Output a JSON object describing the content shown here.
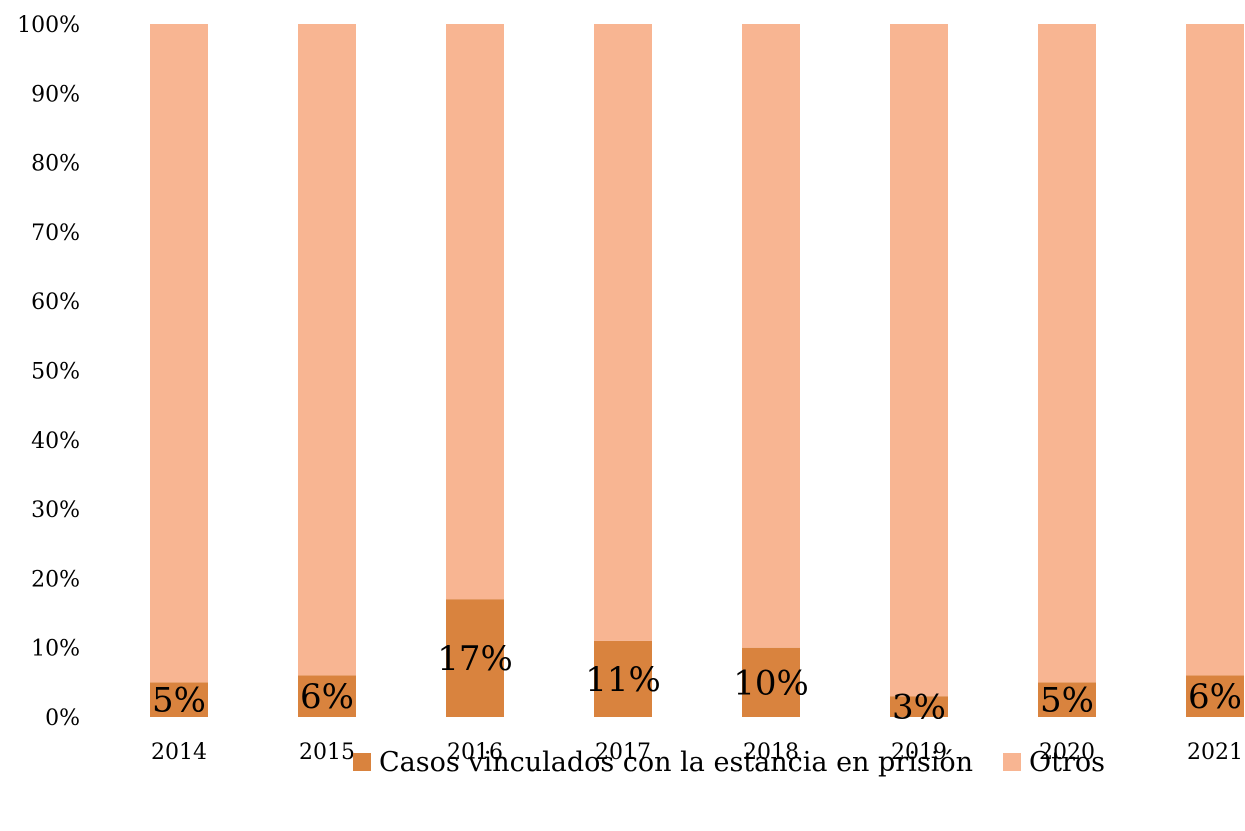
{
  "chart_data": {
    "type": "bar",
    "stacked": true,
    "percent_stacked": true,
    "categories": [
      "2014",
      "2015",
      "2016",
      "2017",
      "2018",
      "2019",
      "2020",
      "2021"
    ],
    "series": [
      {
        "name": "Casos vinculados con la estancia en prisión",
        "values": [
          5,
          6,
          17,
          11,
          10,
          3,
          5,
          6
        ],
        "labels": [
          "5%",
          "6%",
          "17%",
          "11%",
          "10%",
          "3%",
          "5%",
          "6%"
        ],
        "color": "#D9833E"
      },
      {
        "name": "Otros",
        "values": [
          95,
          94,
          83,
          89,
          90,
          97,
          95,
          94
        ],
        "color": "#F8B592"
      }
    ],
    "title": "",
    "xlabel": "",
    "ylabel": "",
    "ylim": [
      0,
      100
    ],
    "y_ticks": [
      "0%",
      "10%",
      "20%",
      "30%",
      "40%",
      "50%",
      "60%",
      "70%",
      "80%",
      "90%",
      "100%"
    ],
    "grid": false,
    "legend_position": "bottom"
  }
}
